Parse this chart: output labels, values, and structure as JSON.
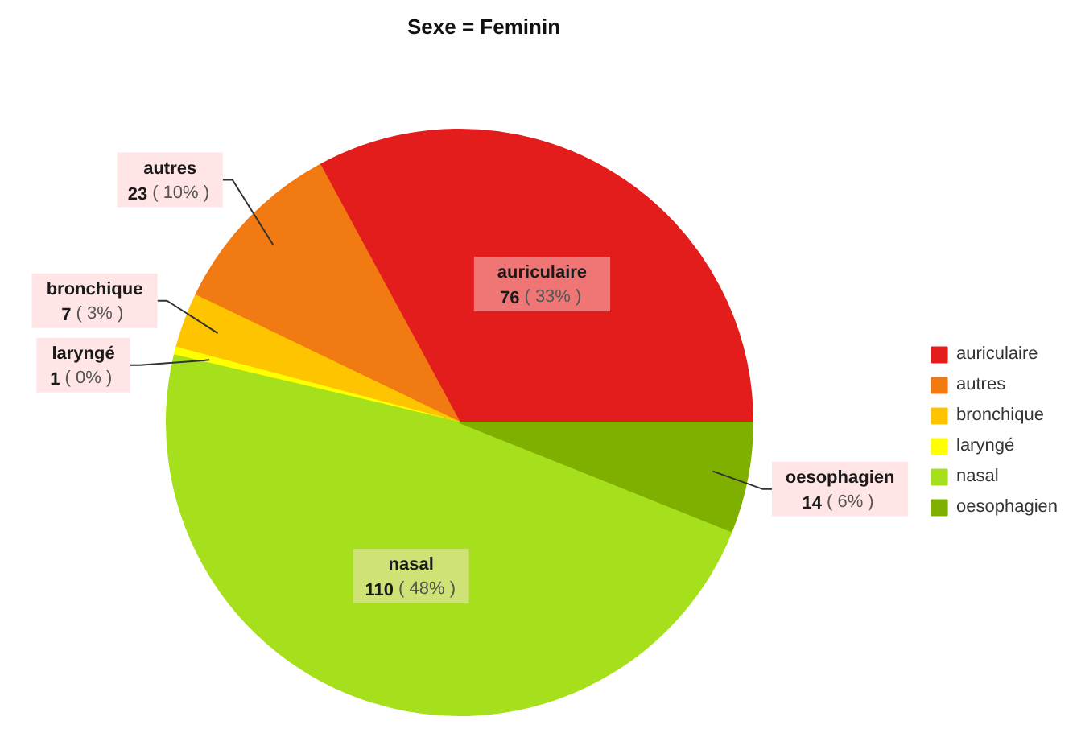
{
  "chart_data": {
    "type": "pie",
    "title": "Sexe = Feminin",
    "categories": [
      "auriculaire",
      "autres",
      "bronchique",
      "laryngé",
      "nasal",
      "oesophagien"
    ],
    "values": [
      76,
      23,
      7,
      1,
      110,
      14
    ],
    "colors": [
      "#e31c1c",
      "#f27a12",
      "#ffc400",
      "#ffff00",
      "#a6e01c",
      "#7fb000"
    ],
    "value_labels": [
      "76 ( 33% )",
      "23 ( 10% )",
      "7 ( 3% )",
      "1 ( 0% )",
      "110 ( 48% )",
      "14 ( 6% )"
    ],
    "legend": "right"
  }
}
